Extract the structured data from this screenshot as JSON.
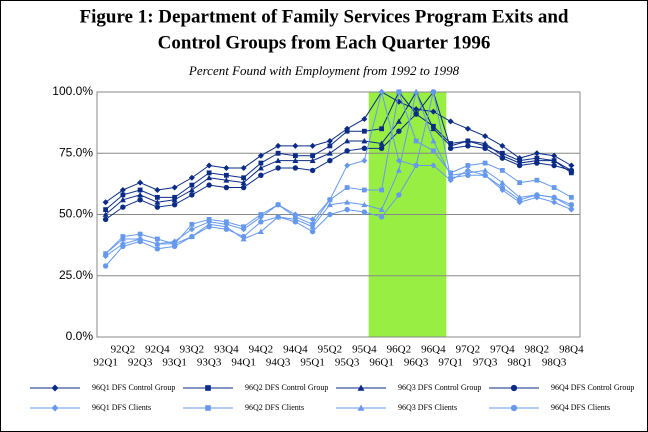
{
  "chart_data": {
    "type": "line",
    "title": [
      "Figure 1:  Department of Family Services Program Exits and",
      "Control Groups from Each Quarter 1996"
    ],
    "subtitle": "Percent Found with Employment from 1992 to 1998",
    "categories": [
      "92Q1",
      "92Q2",
      "92Q3",
      "92Q4",
      "93Q1",
      "93Q2",
      "93Q3",
      "93Q4",
      "94Q1",
      "94Q2",
      "94Q3",
      "94Q4",
      "95Q1",
      "95Q2",
      "95Q3",
      "95Q4",
      "96Q1",
      "96Q2",
      "96Q3",
      "96Q4",
      "97Q1",
      "97Q2",
      "97Q3",
      "97Q4",
      "98Q1",
      "98Q2",
      "98Q3",
      "98Q4"
    ],
    "ylim": [
      0,
      100
    ],
    "yticks": [
      {
        "value": 0,
        "label": "0.0%"
      },
      {
        "value": 25,
        "label": "25.0%"
      },
      {
        "value": 50,
        "label": "50.0%"
      },
      {
        "value": 75,
        "label": "75.0%"
      },
      {
        "value": 100,
        "label": "100.0%"
      }
    ],
    "grid": true,
    "highlight": {
      "from": "96Q1",
      "to": "96Q4",
      "color": "#99ee44"
    },
    "series": [
      {
        "name": "96Q1 DFS Control Group",
        "color": "#0a2b86",
        "marker": "diamond",
        "values": [
          55,
          60,
          63,
          60,
          61,
          65,
          70,
          69,
          69,
          74,
          78,
          78,
          78,
          80,
          85,
          89,
          100,
          96,
          93,
          92,
          88,
          85,
          82,
          78,
          73,
          75,
          74,
          70
        ]
      },
      {
        "name": "96Q2 DFS Control Group",
        "color": "#0a2b86",
        "marker": "square",
        "values": [
          52,
          58,
          60,
          57,
          57,
          62,
          67,
          66,
          65,
          71,
          75,
          74,
          74,
          78,
          84,
          84,
          85,
          100,
          91,
          86,
          79,
          80,
          78,
          75,
          72,
          73,
          72,
          67
        ]
      },
      {
        "name": "96Q3 DFS Control Group",
        "color": "#0a2b86",
        "marker": "triangle",
        "values": [
          50,
          56,
          58,
          55,
          56,
          60,
          65,
          64,
          63,
          69,
          72,
          72,
          72,
          75,
          80,
          80,
          79,
          88,
          100,
          85,
          78,
          80,
          79,
          74,
          71,
          72,
          72,
          68
        ]
      },
      {
        "name": "96Q4 DFS Control Group",
        "color": "#0a2b86",
        "marker": "circle",
        "values": [
          48,
          53,
          56,
          53,
          54,
          58,
          62,
          61,
          61,
          66,
          69,
          69,
          68,
          72,
          76,
          77,
          77,
          84,
          91,
          100,
          77,
          78,
          77,
          73,
          70,
          71,
          70,
          68
        ]
      },
      {
        "name": "96Q1 DFS Clients",
        "color": "#6699ee",
        "marker": "diamond",
        "values": [
          33,
          38,
          40,
          38,
          39,
          44,
          47,
          46,
          44,
          49,
          54,
          50,
          48,
          56,
          70,
          72,
          100,
          72,
          70,
          70,
          64,
          68,
          66,
          60,
          55,
          57,
          55,
          52
        ]
      },
      {
        "name": "96Q2 DFS Clients",
        "color": "#6699ee",
        "marker": "square",
        "values": [
          34,
          41,
          42,
          40,
          38,
          46,
          48,
          47,
          45,
          50,
          54,
          49,
          46,
          56,
          61,
          60,
          60,
          100,
          80,
          76,
          67,
          70,
          71,
          68,
          63,
          64,
          61,
          57
        ]
      },
      {
        "name": "96Q3 DFS Clients",
        "color": "#6699ee",
        "marker": "triangle",
        "values": [
          34,
          40,
          40,
          38,
          38,
          41,
          46,
          45,
          40,
          43,
          49,
          48,
          45,
          54,
          55,
          54,
          52,
          68,
          100,
          80,
          66,
          67,
          68,
          63,
          57,
          58,
          57,
          53
        ]
      },
      {
        "name": "96Q4 DFS Clients",
        "color": "#6699ee",
        "marker": "circle",
        "values": [
          29,
          37,
          39,
          36,
          37,
          41,
          45,
          44,
          41,
          47,
          49,
          47,
          43,
          50,
          52,
          51,
          49,
          58,
          70,
          100,
          65,
          66,
          66,
          61,
          56,
          58,
          57,
          54
        ]
      }
    ]
  }
}
